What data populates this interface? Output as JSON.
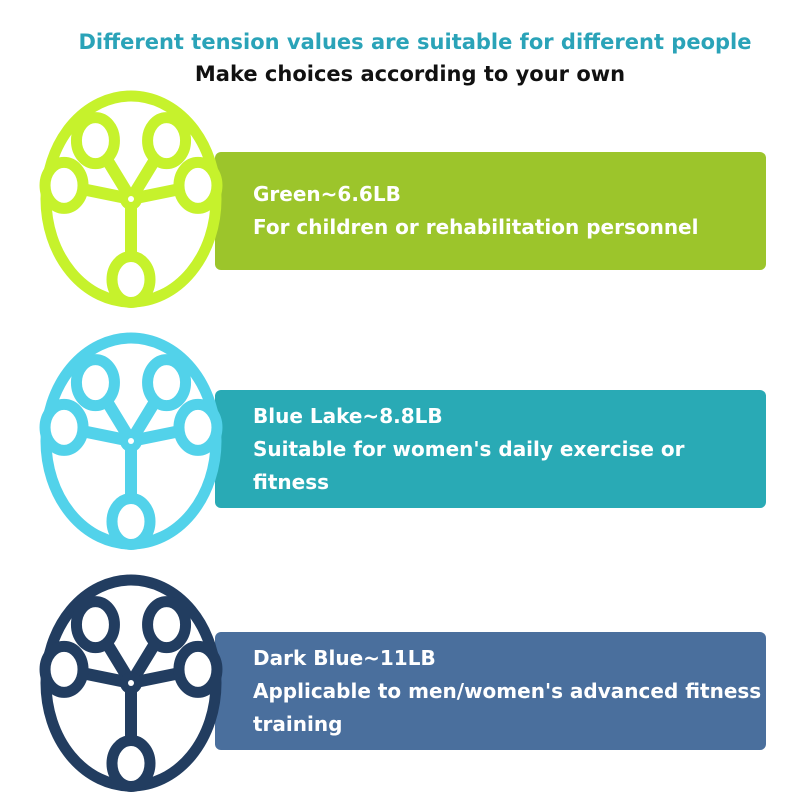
{
  "header": {
    "title": "Different tension values are suitable for different people",
    "subtitle": "Make choices according to your own"
  },
  "items": [
    {
      "name": "Green~6.6LB",
      "description": "For children or rehabilitation personnel",
      "bar_color": "#9cc52b",
      "ring_color": "#c6f22c"
    },
    {
      "name": "Blue Lake~8.8LB",
      "description": "Suitable for women's daily exercise or fitness",
      "bar_color": "#29aab5",
      "ring_color": "#52d2ea"
    },
    {
      "name": "Dark Blue~11LB",
      "description": "Applicable to men/women's advanced fitness training",
      "bar_color": "#4a6f9d",
      "ring_color": "#223d60"
    }
  ]
}
